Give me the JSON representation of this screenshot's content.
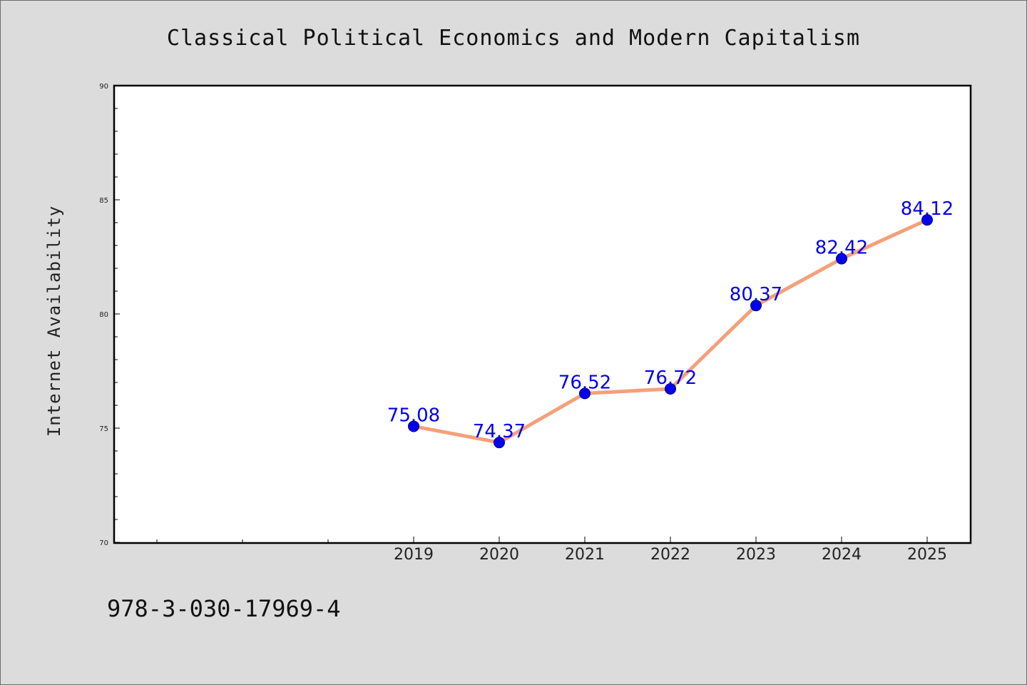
{
  "chart_data": {
    "type": "line",
    "title": "Classical Political Economics and Modern Capitalism",
    "xlabel": "",
    "ylabel": "Internet Availability",
    "categories": [
      "2019",
      "2020",
      "2021",
      "2022",
      "2023",
      "2024",
      "2025"
    ],
    "values": [
      75.08,
      74.37,
      76.52,
      76.72,
      80.37,
      82.42,
      84.12
    ],
    "data_labels": [
      "75.08",
      "74.37",
      "76.52",
      "76.72",
      "80.37",
      "82.42",
      "84.12"
    ],
    "ylim": [
      70,
      90
    ],
    "yticks": [
      "70",
      "75",
      "80",
      "85",
      "90"
    ],
    "grid": false,
    "colors": {
      "line": "#f4a07a",
      "marker": "#0000ee",
      "marker_edge": "#000080",
      "label": "#0000ee"
    }
  },
  "footer_note": "978-3-030-17969-4"
}
